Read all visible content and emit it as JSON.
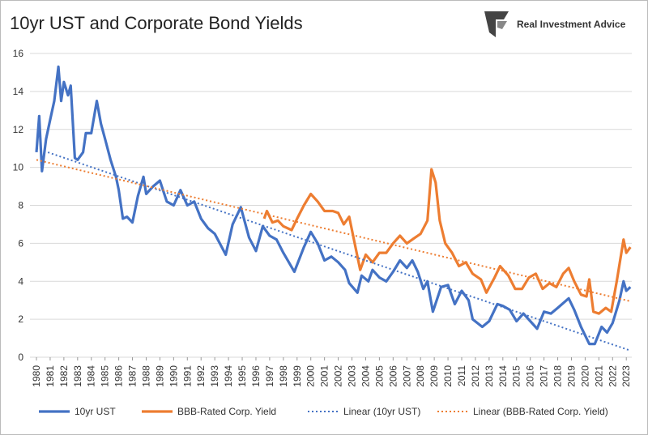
{
  "chart_data": {
    "type": "line",
    "title": "10yr UST and Corporate Bond Yields",
    "source": "Real Investment Advice",
    "xlim": [
      1980,
      2023.4
    ],
    "ylim": [
      0,
      16
    ],
    "yticks": [
      0,
      2,
      4,
      6,
      8,
      10,
      12,
      14,
      16
    ],
    "xticks": [
      1980,
      1981,
      1982,
      1983,
      1984,
      1985,
      1986,
      1987,
      1988,
      1989,
      1990,
      1991,
      1992,
      1993,
      1994,
      1995,
      1996,
      1997,
      1998,
      1999,
      2000,
      2001,
      2002,
      2003,
      2004,
      2005,
      2006,
      2007,
      2008,
      2009,
      2010,
      2011,
      2012,
      2013,
      2014,
      2015,
      2016,
      2017,
      2018,
      2019,
      2020,
      2021,
      2022,
      2023
    ],
    "grid": true,
    "legend": "bottom",
    "series": [
      {
        "name": "10yr UST",
        "color": "#4472c4",
        "style": "solid",
        "x": [
          1980.0,
          1980.2,
          1980.4,
          1980.7,
          1981.0,
          1981.3,
          1981.6,
          1981.8,
          1982.0,
          1982.3,
          1982.5,
          1982.8,
          1983.0,
          1983.4,
          1983.6,
          1984.0,
          1984.4,
          1984.7,
          1985.0,
          1985.4,
          1985.8,
          1986.0,
          1986.3,
          1986.6,
          1987.0,
          1987.4,
          1987.8,
          1988.0,
          1988.5,
          1989.0,
          1989.5,
          1990.0,
          1990.5,
          1991.0,
          1991.5,
          1992.0,
          1992.5,
          1993.0,
          1993.8,
          1994.3,
          1994.9,
          1995.5,
          1996.0,
          1996.5,
          1997.0,
          1997.5,
          1998.0,
          1998.8,
          1999.5,
          2000.0,
          2000.5,
          2001.0,
          2001.5,
          2002.0,
          2002.5,
          2002.8,
          2003.4,
          2003.7,
          2004.2,
          2004.5,
          2005.0,
          2005.5,
          2006.0,
          2006.5,
          2007.0,
          2007.4,
          2007.8,
          2008.2,
          2008.5,
          2008.9,
          2009.5,
          2010.0,
          2010.5,
          2011.0,
          2011.5,
          2011.8,
          2012.5,
          2013.0,
          2013.6,
          2014.0,
          2014.5,
          2015.0,
          2015.5,
          2016.0,
          2016.5,
          2017.0,
          2017.5,
          2018.0,
          2018.8,
          2019.2,
          2019.7,
          2020.3,
          2020.7,
          2021.2,
          2021.6,
          2022.0,
          2022.5,
          2022.8,
          2023.0,
          2023.3
        ],
        "values": [
          10.8,
          12.7,
          9.8,
          11.5,
          12.5,
          13.5,
          15.3,
          13.5,
          14.5,
          13.8,
          14.3,
          10.5,
          10.4,
          10.8,
          11.8,
          11.8,
          13.5,
          12.3,
          11.5,
          10.4,
          9.5,
          8.8,
          7.3,
          7.4,
          7.1,
          8.5,
          9.5,
          8.6,
          9.0,
          9.3,
          8.2,
          8.0,
          8.8,
          8.0,
          8.2,
          7.3,
          6.8,
          6.5,
          5.4,
          7.0,
          7.9,
          6.3,
          5.6,
          6.9,
          6.4,
          6.2,
          5.5,
          4.5,
          5.8,
          6.6,
          6.0,
          5.1,
          5.3,
          5.0,
          4.6,
          3.9,
          3.4,
          4.3,
          4.0,
          4.6,
          4.2,
          4.0,
          4.5,
          5.1,
          4.7,
          5.1,
          4.5,
          3.6,
          4.0,
          2.4,
          3.7,
          3.8,
          2.8,
          3.5,
          3.0,
          2.0,
          1.6,
          1.9,
          2.8,
          2.7,
          2.5,
          1.9,
          2.3,
          1.9,
          1.5,
          2.4,
          2.3,
          2.6,
          3.1,
          2.5,
          1.6,
          0.7,
          0.7,
          1.6,
          1.3,
          1.8,
          3.0,
          4.0,
          3.5,
          3.7
        ]
      },
      {
        "name": "BBB-Rated Corp. Yield",
        "color": "#ed7d31",
        "style": "solid",
        "x": [
          1996.6,
          1996.8,
          1997.2,
          1997.6,
          1998.0,
          1998.6,
          1999.0,
          1999.5,
          2000.0,
          2000.5,
          2001.0,
          2001.6,
          2002.0,
          2002.4,
          2002.8,
          2003.2,
          2003.6,
          2004.0,
          2004.5,
          2005.0,
          2005.5,
          2006.0,
          2006.5,
          2007.0,
          2007.6,
          2008.0,
          2008.5,
          2008.8,
          2009.1,
          2009.4,
          2009.8,
          2010.3,
          2010.8,
          2011.3,
          2011.8,
          2012.4,
          2012.8,
          2013.4,
          2013.8,
          2014.4,
          2014.9,
          2015.4,
          2015.9,
          2016.4,
          2016.9,
          2017.4,
          2017.9,
          2018.4,
          2018.8,
          2019.2,
          2019.7,
          2020.1,
          2020.3,
          2020.6,
          2021.0,
          2021.5,
          2021.9,
          2022.3,
          2022.8,
          2023.0,
          2023.3
        ],
        "values": [
          7.3,
          7.7,
          7.1,
          7.2,
          6.9,
          6.7,
          7.3,
          8.0,
          8.6,
          8.2,
          7.7,
          7.7,
          7.6,
          7.0,
          7.4,
          6.0,
          4.6,
          5.4,
          5.0,
          5.5,
          5.5,
          6.0,
          6.4,
          6.0,
          6.3,
          6.5,
          7.2,
          9.9,
          9.2,
          7.2,
          6.0,
          5.5,
          4.8,
          5.0,
          4.4,
          4.1,
          3.4,
          4.2,
          4.8,
          4.3,
          3.6,
          3.6,
          4.2,
          4.4,
          3.6,
          3.9,
          3.7,
          4.4,
          4.7,
          4.0,
          3.3,
          3.2,
          4.1,
          2.4,
          2.3,
          2.6,
          2.4,
          4.0,
          6.2,
          5.5,
          5.8
        ]
      },
      {
        "name": "Linear (10yr UST)",
        "color": "#4472c4",
        "style": "dotted",
        "x": [
          1980.0,
          2023.3
        ],
        "values": [
          11.0,
          0.35
        ]
      },
      {
        "name": "Linear (BBB-Rated Corp. Yield)",
        "color": "#ed7d31",
        "style": "dotted",
        "x": [
          1980.0,
          2023.3
        ],
        "values": [
          10.4,
          2.95
        ]
      }
    ]
  }
}
